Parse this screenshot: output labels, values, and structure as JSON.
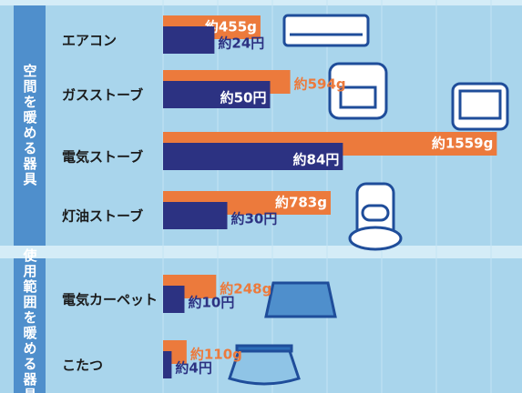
{
  "chart_data": {
    "type": "bar",
    "groups": [
      {
        "label": "空間を暖める器具",
        "count": 4
      },
      {
        "label": "使用範囲を暖める器具",
        "count": 2
      }
    ],
    "categories": [
      "エアコン",
      "ガスストーブ",
      "電気ストーブ",
      "灯油ストーブ",
      "電気カーペット",
      "こたつ"
    ],
    "series": [
      {
        "color": "#ec7a3c",
        "values": [
          455,
          594,
          1559,
          783,
          248,
          110
        ],
        "value_labels": [
          "約455g",
          "約594g",
          "約1559g",
          "約783g",
          "約248g",
          "約110g"
        ],
        "xlim": [
          0,
          1600
        ]
      },
      {
        "color": "#2c3282",
        "values": [
          24,
          50,
          84,
          30,
          10,
          4
        ],
        "value_labels": [
          "約24円",
          "約50円",
          "約84円",
          "約30円",
          "約10円",
          "約4円"
        ],
        "xlim": [
          0,
          160
        ]
      }
    ]
  }
}
